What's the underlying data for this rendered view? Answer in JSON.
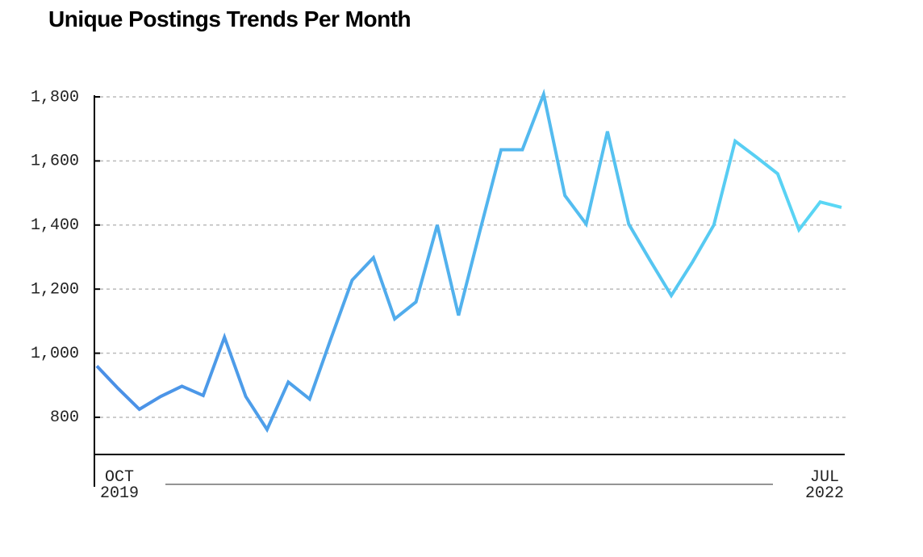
{
  "chart_data": {
    "type": "line",
    "title": "Unique Postings Trends Per Month",
    "categories": [
      "OCT\n2019",
      null,
      null,
      null,
      null,
      null,
      null,
      null,
      null,
      null,
      null,
      null,
      null,
      null,
      null,
      null,
      null,
      null,
      null,
      null,
      null,
      null,
      null,
      null,
      null,
      null,
      null,
      null,
      null,
      null,
      null,
      null,
      null,
      null,
      null,
      "JUL\n2022"
    ],
    "series": [
      {
        "color_start": "#4a8ee6",
        "color_end": "#5ad8f5",
        "values": [
          960,
          890,
          825,
          865,
          897,
          868,
          1050,
          865,
          762,
          910,
          857,
          1045,
          1228,
          1298,
          1107,
          1160,
          1400,
          1118,
          1380,
          1635,
          1635,
          1808,
          1492,
          1403,
          1692,
          1403,
          1290,
          1180,
          1285,
          1400,
          1662,
          1612,
          1560,
          1385,
          1472,
          1455
        ]
      }
    ],
    "ylim": [
      684,
      1810
    ],
    "yticks": [
      {
        "value": 800,
        "label": "800"
      },
      {
        "value": 1000,
        "label": "1,000"
      },
      {
        "value": 1200,
        "label": "1,200"
      },
      {
        "value": 1400,
        "label": "1,400"
      },
      {
        "value": 1600,
        "label": "1,600"
      },
      {
        "value": 1800,
        "label": "1,800"
      }
    ],
    "grid": true
  }
}
